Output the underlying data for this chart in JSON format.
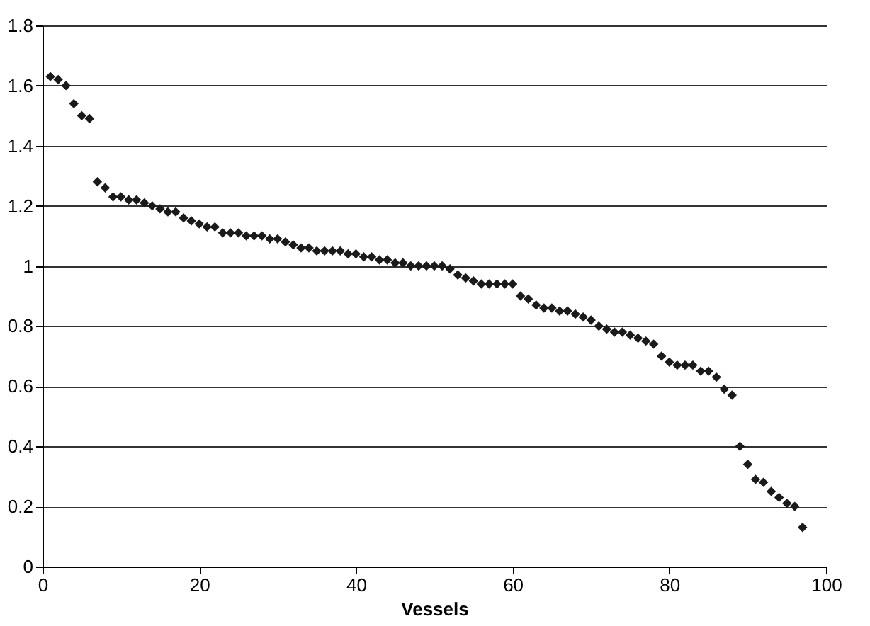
{
  "chart_data": {
    "type": "scatter",
    "xlabel": "Vessels",
    "x": [
      1,
      2,
      3,
      4,
      5,
      6,
      7,
      8,
      9,
      10,
      11,
      12,
      13,
      14,
      15,
      16,
      17,
      18,
      19,
      20,
      21,
      22,
      23,
      24,
      25,
      26,
      27,
      28,
      29,
      30,
      31,
      32,
      33,
      34,
      35,
      36,
      37,
      38,
      39,
      40,
      41,
      42,
      43,
      44,
      45,
      46,
      47,
      48,
      49,
      50,
      51,
      52,
      53,
      54,
      55,
      56,
      57,
      58,
      59,
      60,
      61,
      62,
      63,
      64,
      65,
      66,
      67,
      68,
      69,
      70,
      71,
      72,
      73,
      74,
      75,
      76,
      77,
      78,
      79,
      80,
      81,
      82,
      83,
      84,
      85,
      86,
      87,
      88,
      89,
      90,
      91,
      92,
      93,
      94,
      95,
      96,
      97
    ],
    "values": [
      1.63,
      1.62,
      1.6,
      1.54,
      1.5,
      1.49,
      1.28,
      1.26,
      1.23,
      1.23,
      1.22,
      1.22,
      1.21,
      1.2,
      1.19,
      1.18,
      1.18,
      1.16,
      1.15,
      1.14,
      1.13,
      1.13,
      1.11,
      1.11,
      1.11,
      1.1,
      1.1,
      1.1,
      1.09,
      1.09,
      1.08,
      1.07,
      1.06,
      1.06,
      1.05,
      1.05,
      1.05,
      1.05,
      1.04,
      1.04,
      1.03,
      1.03,
      1.02,
      1.02,
      1.01,
      1.01,
      1.0,
      1.0,
      1.0,
      1.0,
      1.0,
      0.99,
      0.97,
      0.96,
      0.95,
      0.94,
      0.94,
      0.94,
      0.94,
      0.94,
      0.9,
      0.89,
      0.87,
      0.86,
      0.86,
      0.85,
      0.85,
      0.84,
      0.83,
      0.82,
      0.8,
      0.79,
      0.78,
      0.78,
      0.77,
      0.76,
      0.75,
      0.74,
      0.7,
      0.68,
      0.67,
      0.67,
      0.67,
      0.65,
      0.65,
      0.63,
      0.59,
      0.57,
      0.4,
      0.34,
      0.29,
      0.28,
      0.25,
      0.23,
      0.21,
      0.2,
      0.13
    ],
    "color": "#1a1a1a",
    "marker": "diamond",
    "xlim": [
      0,
      100
    ],
    "xticks": [
      0,
      20,
      40,
      60,
      80,
      100
    ],
    "ylim": [
      0,
      1.8
    ],
    "yticks": [
      0,
      0.2,
      0.4,
      0.6,
      0.8,
      1,
      1.2,
      1.4,
      1.6,
      1.8
    ],
    "grid": "y"
  }
}
